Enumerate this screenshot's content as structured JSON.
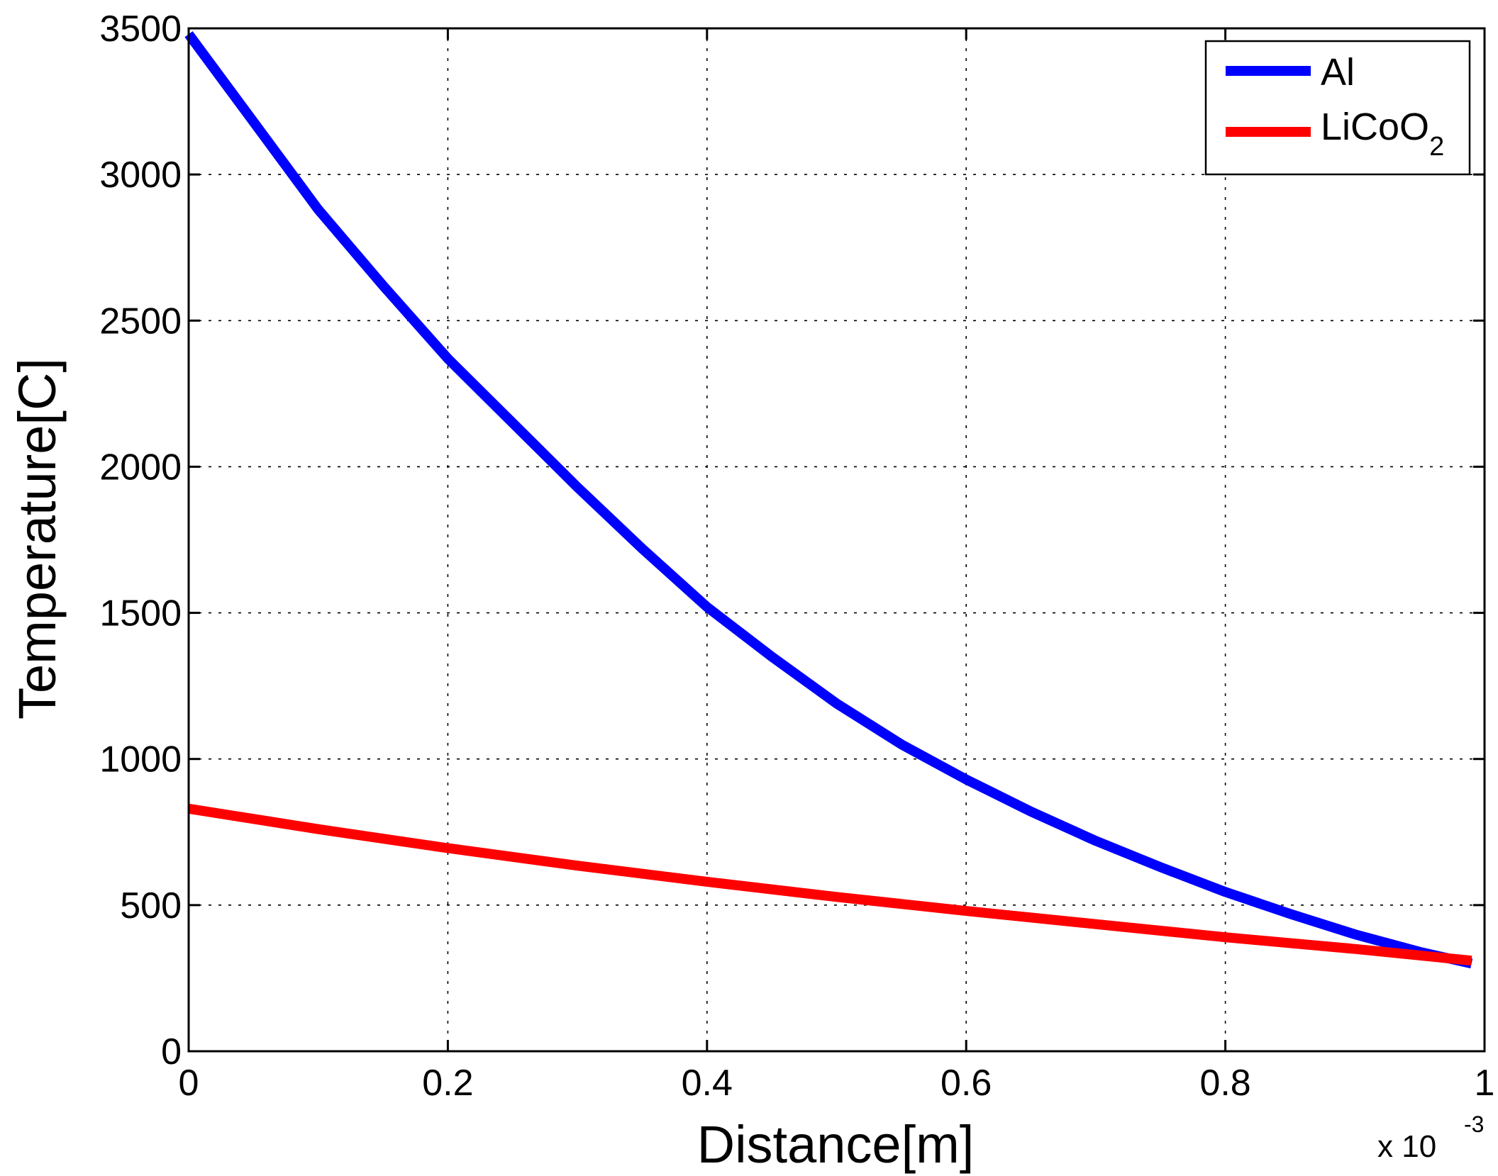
{
  "chart_data": {
    "type": "line",
    "xlabel": "Distance[m]",
    "ylabel": "Temperature[C]",
    "x_multiplier": {
      "prefix": "x 10",
      "exponent": "-3"
    },
    "xlim": [
      0,
      1
    ],
    "ylim": [
      0,
      3500
    ],
    "x_ticks": [
      0,
      0.2,
      0.4,
      0.6,
      0.8,
      1
    ],
    "x_tick_labels": [
      "0",
      "0.2",
      "0.4",
      "0.6",
      "0.8",
      "1"
    ],
    "y_ticks": [
      0,
      500,
      1000,
      1500,
      2000,
      2500,
      3000,
      3500
    ],
    "y_tick_labels": [
      "0",
      "500",
      "1000",
      "1500",
      "2000",
      "2500",
      "3000",
      "3500"
    ],
    "grid": true,
    "legend_position": "top-right",
    "series": [
      {
        "name": "Al",
        "name_sub": "",
        "color": "#0000ff",
        "points": [
          [
            0,
            3480
          ],
          [
            0.05,
            3180
          ],
          [
            0.1,
            2880
          ],
          [
            0.15,
            2620
          ],
          [
            0.2,
            2370
          ],
          [
            0.25,
            2150
          ],
          [
            0.3,
            1930
          ],
          [
            0.35,
            1720
          ],
          [
            0.4,
            1520
          ],
          [
            0.45,
            1350
          ],
          [
            0.5,
            1190
          ],
          [
            0.55,
            1050
          ],
          [
            0.6,
            930
          ],
          [
            0.65,
            820
          ],
          [
            0.7,
            720
          ],
          [
            0.75,
            630
          ],
          [
            0.8,
            545
          ],
          [
            0.85,
            470
          ],
          [
            0.9,
            400
          ],
          [
            0.95,
            340
          ],
          [
            0.99,
            300
          ]
        ]
      },
      {
        "name": "LiCoO",
        "name_sub": "2",
        "color": "#ff0000",
        "points": [
          [
            0,
            830
          ],
          [
            0.1,
            760
          ],
          [
            0.2,
            695
          ],
          [
            0.3,
            635
          ],
          [
            0.4,
            580
          ],
          [
            0.5,
            528
          ],
          [
            0.6,
            480
          ],
          [
            0.7,
            435
          ],
          [
            0.8,
            390
          ],
          [
            0.9,
            350
          ],
          [
            0.99,
            310
          ]
        ]
      }
    ]
  }
}
